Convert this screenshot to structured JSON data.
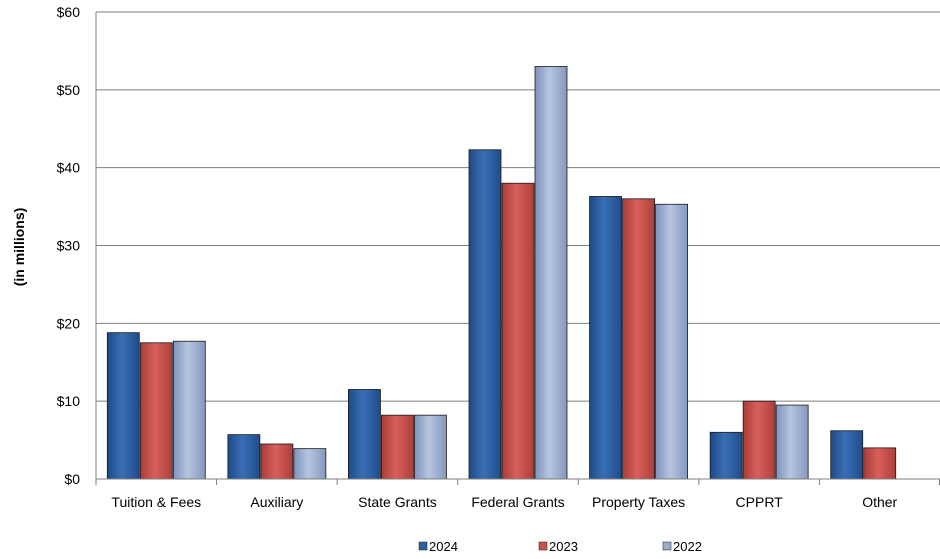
{
  "chart_data": {
    "type": "bar",
    "title": "",
    "xlabel": "",
    "ylabel": "(in millions)",
    "ylim": [
      0,
      60
    ],
    "yticks": [
      0,
      10,
      20,
      30,
      40,
      50,
      60
    ],
    "ytick_labels": [
      "$0",
      "$10",
      "$20",
      "$30",
      "$40",
      "$50",
      "$60"
    ],
    "grid": true,
    "legend_position": "bottom",
    "categories": [
      "Tuition & Fees",
      "Auxiliary",
      "State Grants",
      "Federal Grants",
      "Property Taxes",
      "CPPRT",
      "Other"
    ],
    "series": [
      {
        "name": "2024",
        "color": "#2e5fa3",
        "values": [
          18.8,
          5.7,
          11.5,
          42.3,
          36.3,
          6.0,
          6.2
        ]
      },
      {
        "name": "2023",
        "color": "#c8524e",
        "values": [
          17.5,
          4.5,
          8.2,
          38.0,
          36.0,
          10.0,
          4.0
        ]
      },
      {
        "name": "2022",
        "color": "#9aaccd",
        "values": [
          17.7,
          3.9,
          8.2,
          53.0,
          35.3,
          9.5,
          0
        ]
      }
    ]
  }
}
